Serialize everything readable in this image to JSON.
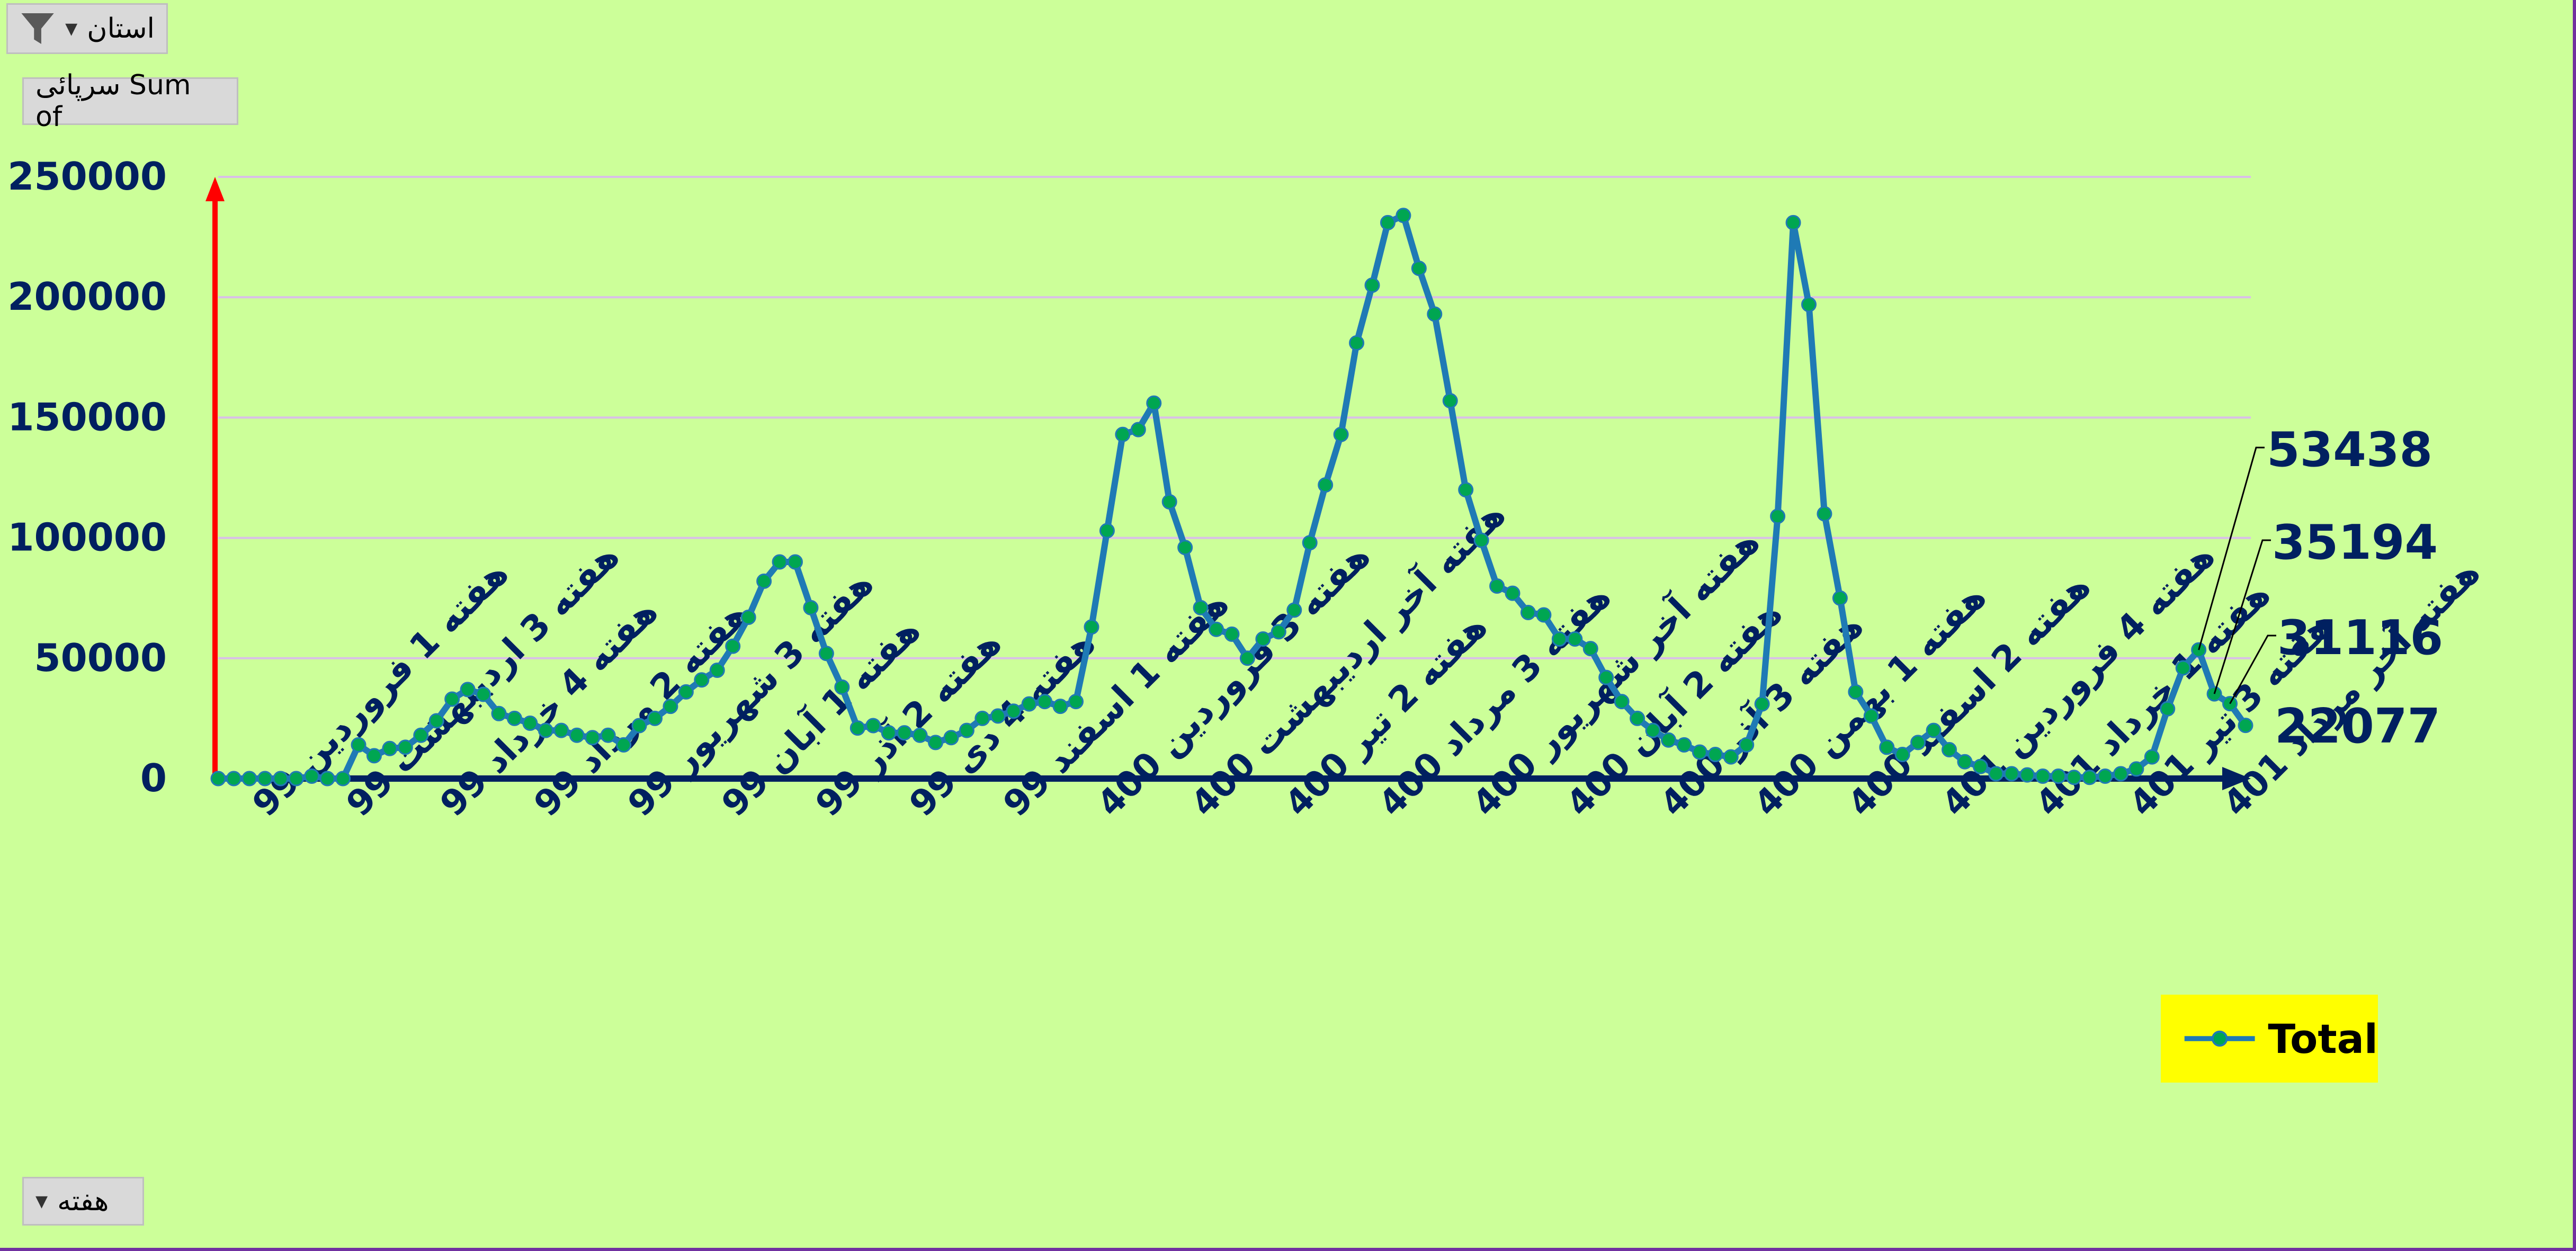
{
  "filter_button": {
    "label": "استان"
  },
  "values_button": {
    "label": "سرپائی Sum of"
  },
  "axis_button": {
    "label": "هفته"
  },
  "legend": {
    "label": "Total",
    "color": "#1f7ab5",
    "marker_color": "#00a651"
  },
  "colors": {
    "background": "#ccff99",
    "y_axis": "#ff0000",
    "x_axis": "#002060",
    "label_text": "#002060"
  },
  "chart_data": {
    "type": "line",
    "y_ticks": [
      0,
      50000,
      100000,
      150000,
      200000,
      250000
    ],
    "ylim": [
      0,
      250000
    ],
    "x_tick_labels": [
      "هفته 1 فروردین 99",
      "هفته 3 اردیبهشت 99",
      "هفته 4 خرداد 99",
      "هفته 2 مرداد 99",
      "هفته 3 شهریور 99",
      "هفته 1 آبان 99",
      "هفته 2 آذر 99",
      "هفته 4 دی 99",
      "هفته 1 اسفند 99",
      "هفته 3 فروردین 400",
      "هفته آخر اردیبهشت 400",
      "هفته 2 تیر 400",
      "هفته 3 مرداد 400",
      "هفته آخر شهریور 400",
      "هفته 2 آبان 400",
      "هفته 3 آذر 400",
      "هفته 1 بهمن 400",
      "هفته 2 اسفند 400",
      "هفته 4 فروردین 401",
      "هفته 1 خرداد 401",
      "هفته 3 تیر 401",
      "هفته آخر مرداد 401"
    ],
    "series": [
      {
        "name": "Total",
        "values": [
          0,
          0,
          0,
          0,
          0,
          0,
          1000,
          0,
          0,
          14000,
          9500,
          12500,
          13000,
          18000,
          24000,
          33000,
          37000,
          35000,
          27000,
          25000,
          23000,
          20000,
          20000,
          18000,
          17000,
          18000,
          14000,
          22000,
          25000,
          30000,
          36000,
          41000,
          45000,
          55000,
          67000,
          82000,
          90000,
          90000,
          71000,
          52000,
          38000,
          21000,
          22000,
          19000,
          19000,
          18000,
          15000,
          17000,
          20000,
          25000,
          26000,
          28000,
          31000,
          32000,
          30000,
          32000,
          63000,
          103000,
          143000,
          145000,
          156000,
          115000,
          96000,
          71000,
          62000,
          60000,
          50000,
          58000,
          61000,
          70000,
          98000,
          122000,
          143000,
          181000,
          205000,
          231000,
          234000,
          212000,
          193000,
          157000,
          120000,
          99000,
          80000,
          77000,
          69000,
          68000,
          58000,
          58000,
          54000,
          42000,
          32000,
          25000,
          20000,
          16000,
          14000,
          11000,
          10000,
          9000,
          14000,
          31000,
          109000,
          231000,
          197000,
          110000,
          75000,
          36000,
          26000,
          13000,
          10000,
          15000,
          20000,
          12000,
          7000,
          5000,
          2000,
          2000,
          1500,
          1000,
          1000,
          500,
          500,
          1000,
          2000,
          4000,
          9000,
          29000,
          46000,
          53438,
          35194,
          31116,
          22077
        ]
      }
    ],
    "value_labels": [
      "53438",
      "35194",
      "31116",
      "22077"
    ]
  }
}
